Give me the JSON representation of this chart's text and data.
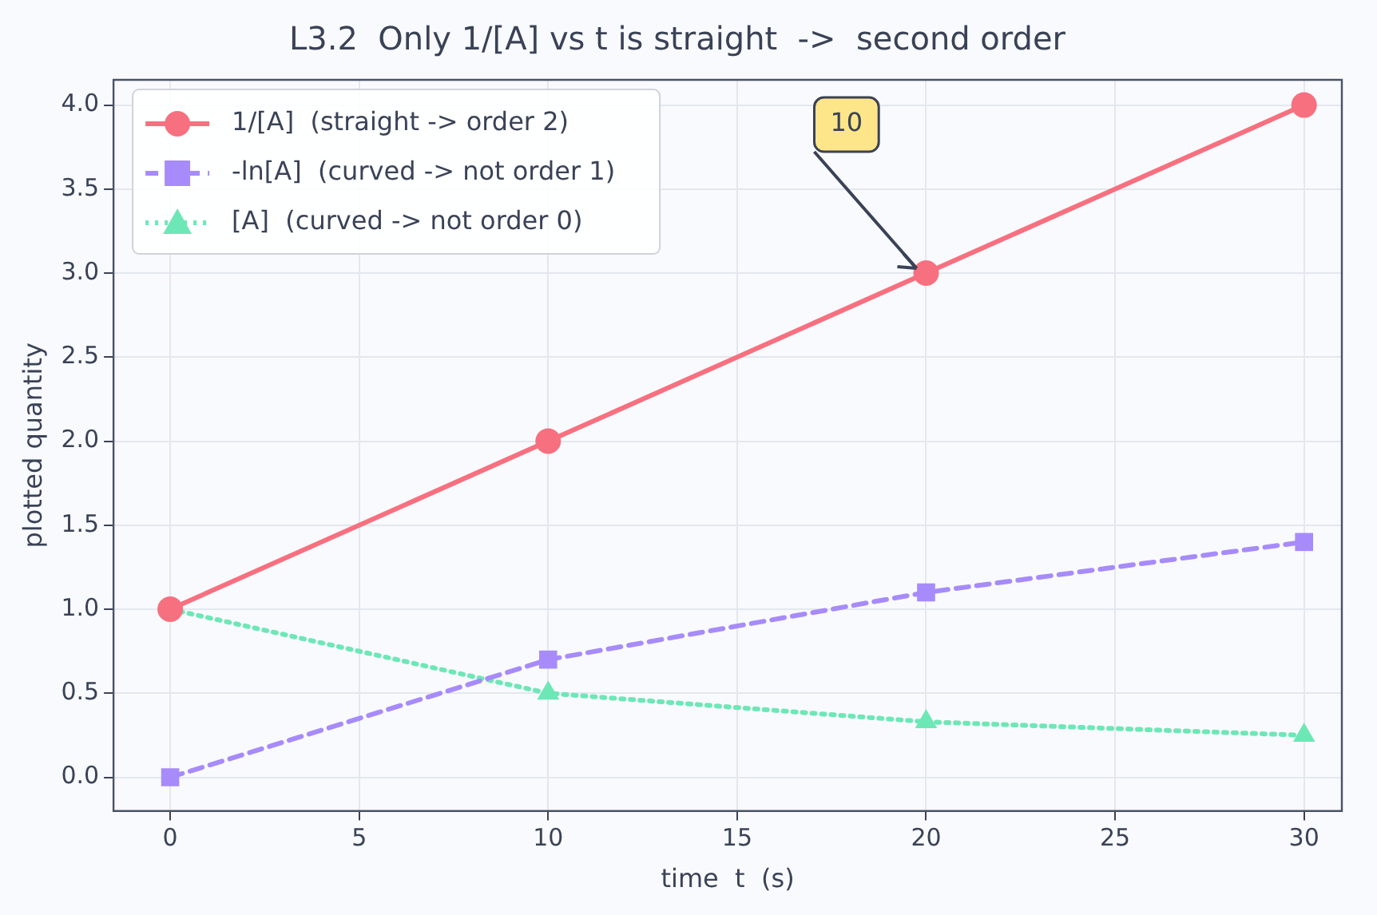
{
  "chart_data": {
    "type": "line",
    "title": "L3.2  Only 1/[A] vs t is straight  ->  second order",
    "xlabel": "time  t  (s)",
    "ylabel": "plotted quantity",
    "x": [
      0,
      10,
      20,
      30
    ],
    "series": [
      {
        "name": "1/[A]  (straight -> order 2)",
        "color": "#f7707f",
        "values": [
          1,
          2,
          3,
          4
        ],
        "marker": "circle",
        "line_style": "solid"
      },
      {
        "name": "-ln[A]  (curved -> not order 1)",
        "color": "#a78bfa",
        "values": [
          0,
          0.7,
          1.1,
          1.4
        ],
        "marker": "square",
        "line_style": "dashed"
      },
      {
        "name": "[A]  (curved -> not order 0)",
        "color": "#6ee7b7",
        "values": [
          1,
          0.5,
          0.33,
          0.25
        ],
        "marker": "triangle",
        "line_style": "dotted"
      }
    ],
    "annotations": [
      {
        "text": "10",
        "x": 20,
        "y": 3
      }
    ],
    "xlim": [
      -1.5,
      31
    ],
    "xticks": [
      0,
      5,
      10,
      15,
      20,
      25,
      30
    ],
    "ylim": [
      -0.2,
      4.15
    ],
    "yticks": [
      {
        "value": 0,
        "label": "0.0"
      },
      {
        "value": 0.5,
        "label": "0.5"
      },
      {
        "value": 1,
        "label": "1.0"
      },
      {
        "value": 1.5,
        "label": "1.5"
      },
      {
        "value": 2,
        "label": "2.0"
      },
      {
        "value": 2.5,
        "label": "2.5"
      },
      {
        "value": 3,
        "label": "3.0"
      },
      {
        "value": 3.5,
        "label": "3.5"
      },
      {
        "value": 4,
        "label": "4.0"
      }
    ],
    "grid": true,
    "legend": "top left"
  }
}
